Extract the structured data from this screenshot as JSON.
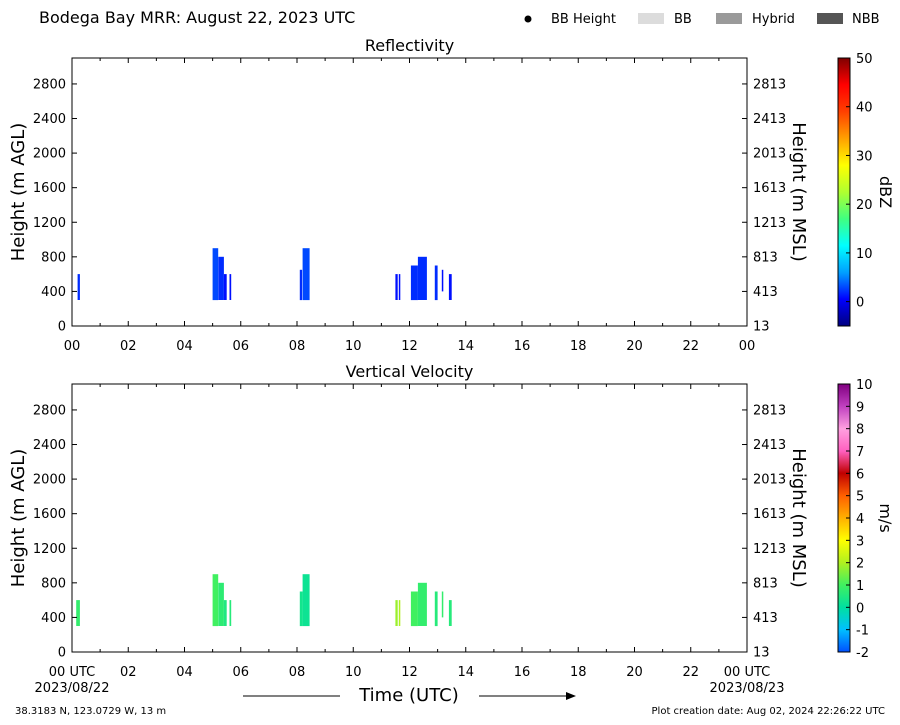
{
  "header": {
    "title": "Bodega Bay MRR:  August 22, 2023 UTC",
    "legend": [
      {
        "label": "BB Height",
        "kind": "dot",
        "color": "#000000"
      },
      {
        "label": "BB",
        "kind": "swatch",
        "color": "#dcdcdc"
      },
      {
        "label": "Hybrid",
        "kind": "swatch",
        "color": "#9a9a9a"
      },
      {
        "label": "NBB",
        "kind": "swatch",
        "color": "#555555"
      }
    ]
  },
  "footer": {
    "location": "38.3183 N, 123.0729 W, 13 m",
    "created": "Plot creation date: Aug 02, 2024 22:26:22 UTC",
    "xlabel": "Time (UTC)",
    "start_date": "2023/08/22",
    "end_date": "2023/08/23"
  },
  "chart_data": [
    {
      "type": "heatmap",
      "title": "Reflectivity",
      "ylabel": "Height (m AGL)",
      "y2label": "Height (m MSL)",
      "x_ticks": [
        "00",
        "02",
        "04",
        "06",
        "08",
        "10",
        "12",
        "14",
        "16",
        "18",
        "20",
        "22",
        "00"
      ],
      "xlim_hours": [
        0,
        24
      ],
      "ylim": [
        0,
        3100
      ],
      "y_ticks": [
        0,
        400,
        800,
        1200,
        1600,
        2000,
        2400,
        2800
      ],
      "y2_ticks": [
        13,
        413,
        813,
        1213,
        1613,
        2013,
        2413,
        2813
      ],
      "colorbar": {
        "label": "dBZ",
        "range": [
          -5,
          50
        ],
        "ticks": [
          0,
          10,
          20,
          30,
          40,
          50
        ],
        "colors": [
          "#00007f",
          "#0000ff",
          "#00a0ff",
          "#00ffff",
          "#40ff80",
          "#b0ff30",
          "#ffff00",
          "#ffa000",
          "#ff4000",
          "#ff0000",
          "#7f0000"
        ]
      },
      "segments": [
        {
          "x0": 0.2,
          "x1": 0.28,
          "y0": 300,
          "y1": 600,
          "value": 2
        },
        {
          "x0": 5.0,
          "x1": 5.2,
          "y0": 300,
          "y1": 900,
          "value": 3
        },
        {
          "x0": 5.2,
          "x1": 5.4,
          "y0": 300,
          "y1": 800,
          "value": 2
        },
        {
          "x0": 5.4,
          "x1": 5.5,
          "y0": 300,
          "y1": 600,
          "value": 1
        },
        {
          "x0": 5.6,
          "x1": 5.66,
          "y0": 300,
          "y1": 600,
          "value": 1
        },
        {
          "x0": 8.1,
          "x1": 8.18,
          "y0": 300,
          "y1": 650,
          "value": 2
        },
        {
          "x0": 8.2,
          "x1": 8.45,
          "y0": 300,
          "y1": 900,
          "value": 3
        },
        {
          "x0": 11.5,
          "x1": 11.58,
          "y0": 300,
          "y1": 600,
          "value": 1
        },
        {
          "x0": 11.62,
          "x1": 11.66,
          "y0": 300,
          "y1": 600,
          "value": 1
        },
        {
          "x0": 12.05,
          "x1": 12.3,
          "y0": 300,
          "y1": 700,
          "value": 2
        },
        {
          "x0": 12.3,
          "x1": 12.62,
          "y0": 300,
          "y1": 800,
          "value": 2
        },
        {
          "x0": 12.9,
          "x1": 13.0,
          "y0": 300,
          "y1": 700,
          "value": 2
        },
        {
          "x0": 13.15,
          "x1": 13.2,
          "y0": 400,
          "y1": 650,
          "value": 1
        },
        {
          "x0": 13.4,
          "x1": 13.5,
          "y0": 300,
          "y1": 600,
          "value": 1
        }
      ]
    },
    {
      "type": "heatmap",
      "title": "Vertical Velocity",
      "ylabel": "Height (m AGL)",
      "y2label": "Height (m MSL)",
      "x_ticks": [
        "00 UTC",
        "02",
        "04",
        "06",
        "08",
        "10",
        "12",
        "14",
        "16",
        "18",
        "20",
        "22",
        "00 UTC"
      ],
      "xlim_hours": [
        0,
        24
      ],
      "ylim": [
        0,
        3100
      ],
      "y_ticks": [
        0,
        400,
        800,
        1200,
        1600,
        2000,
        2400,
        2800
      ],
      "y2_ticks": [
        13,
        413,
        813,
        1213,
        1613,
        2013,
        2413,
        2813
      ],
      "colorbar": {
        "label": "m/s",
        "range": [
          -2,
          10
        ],
        "ticks": [
          -2,
          -1,
          0,
          1,
          2,
          3,
          4,
          5,
          6,
          7,
          8,
          9,
          10
        ],
        "colors": [
          "#0050ff",
          "#00c0ff",
          "#00e0a0",
          "#40f060",
          "#b0f020",
          "#ffff00",
          "#ffb000",
          "#ff6000",
          "#c00000",
          "#ff60c0",
          "#ffa0e0",
          "#c040c0",
          "#800080"
        ]
      },
      "segments": [
        {
          "x0": 0.15,
          "x1": 0.28,
          "y0": 300,
          "y1": 600,
          "value": 0.8
        },
        {
          "x0": 5.0,
          "x1": 5.2,
          "y0": 300,
          "y1": 900,
          "value": 1.0
        },
        {
          "x0": 5.2,
          "x1": 5.4,
          "y0": 300,
          "y1": 800,
          "value": 0.7
        },
        {
          "x0": 5.4,
          "x1": 5.5,
          "y0": 300,
          "y1": 600,
          "value": 0.5
        },
        {
          "x0": 5.6,
          "x1": 5.66,
          "y0": 300,
          "y1": 600,
          "value": 0.6
        },
        {
          "x0": 8.1,
          "x1": 8.2,
          "y0": 300,
          "y1": 700,
          "value": 0.3
        },
        {
          "x0": 8.2,
          "x1": 8.45,
          "y0": 300,
          "y1": 900,
          "value": 0.2
        },
        {
          "x0": 11.5,
          "x1": 11.58,
          "y0": 300,
          "y1": 600,
          "value": 1.8
        },
        {
          "x0": 11.62,
          "x1": 11.66,
          "y0": 300,
          "y1": 600,
          "value": 2.0
        },
        {
          "x0": 12.05,
          "x1": 12.3,
          "y0": 300,
          "y1": 700,
          "value": 1.0
        },
        {
          "x0": 12.3,
          "x1": 12.62,
          "y0": 300,
          "y1": 800,
          "value": 0.8
        },
        {
          "x0": 12.9,
          "x1": 13.0,
          "y0": 300,
          "y1": 700,
          "value": 0.6
        },
        {
          "x0": 13.15,
          "x1": 13.2,
          "y0": 400,
          "y1": 700,
          "value": 0.8
        },
        {
          "x0": 13.4,
          "x1": 13.5,
          "y0": 300,
          "y1": 600,
          "value": 0.6
        }
      ]
    }
  ]
}
